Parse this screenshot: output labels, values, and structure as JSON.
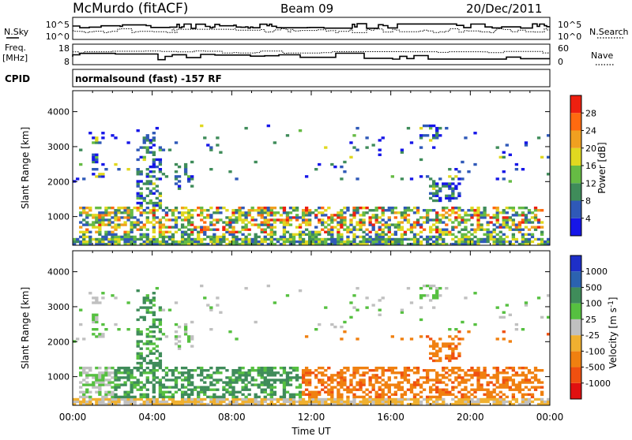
{
  "header": {
    "station": "McMurdo (fitACF)",
    "beam": "Beam 09",
    "date": "20/Dec/2011"
  },
  "noise_panel": {
    "left_label": "N.Sky",
    "right_label": "N.Search",
    "left_ticks": [
      "10^5",
      "10^0"
    ],
    "right_ticks": [
      "10^5",
      "10^0"
    ]
  },
  "freq_panel": {
    "left_label_1": "Freq.",
    "left_label_2": "[MHz]",
    "right_label": "Nave",
    "left_ticks": [
      "18",
      "8"
    ],
    "right_ticks": [
      "60",
      "0"
    ]
  },
  "cpid": {
    "label": "CPID",
    "text": "normalsound (fast) -157 RF"
  },
  "chart_data": [
    {
      "type": "heatmap",
      "quantity": "power",
      "ylabel": "Slant Range [km]",
      "ylim": [
        180,
        4600
      ],
      "yticks": [
        "1000",
        "2000",
        "3000",
        "4000"
      ],
      "x_range_hours": [
        0,
        24
      ],
      "colorbar": {
        "label": "Power [dB]",
        "ticks": [
          "4",
          "8",
          "12",
          "16",
          "20",
          "24",
          "28"
        ],
        "colors": [
          "#1616e8",
          "#2f59b8",
          "#3f8c5a",
          "#66bb44",
          "#e0d820",
          "#f0a020",
          "#ff6a10",
          "#ee2010"
        ]
      }
    },
    {
      "type": "heatmap",
      "quantity": "velocity",
      "ylabel": "Slant Range [km]",
      "ylim": [
        180,
        4600
      ],
      "yticks": [
        "1000",
        "2000",
        "3000",
        "4000"
      ],
      "x_range_hours": [
        0,
        24
      ],
      "xticks": [
        "00:00",
        "04:00",
        "08:00",
        "12:00",
        "16:00",
        "20:00",
        "00:00"
      ],
      "xlabel": "Time UT",
      "colorbar": {
        "label": "Velocity [m s-1]",
        "ticks": [
          "1000",
          "500",
          "100",
          "25",
          "-25",
          "-100",
          "-500",
          "-1000"
        ],
        "colors": [
          "#1e2fc8",
          "#2b62b0",
          "#3f8c5a",
          "#56c040",
          "#c0c0c0",
          "#f0b030",
          "#f08010",
          "#f05010",
          "#e01010"
        ]
      }
    }
  ]
}
